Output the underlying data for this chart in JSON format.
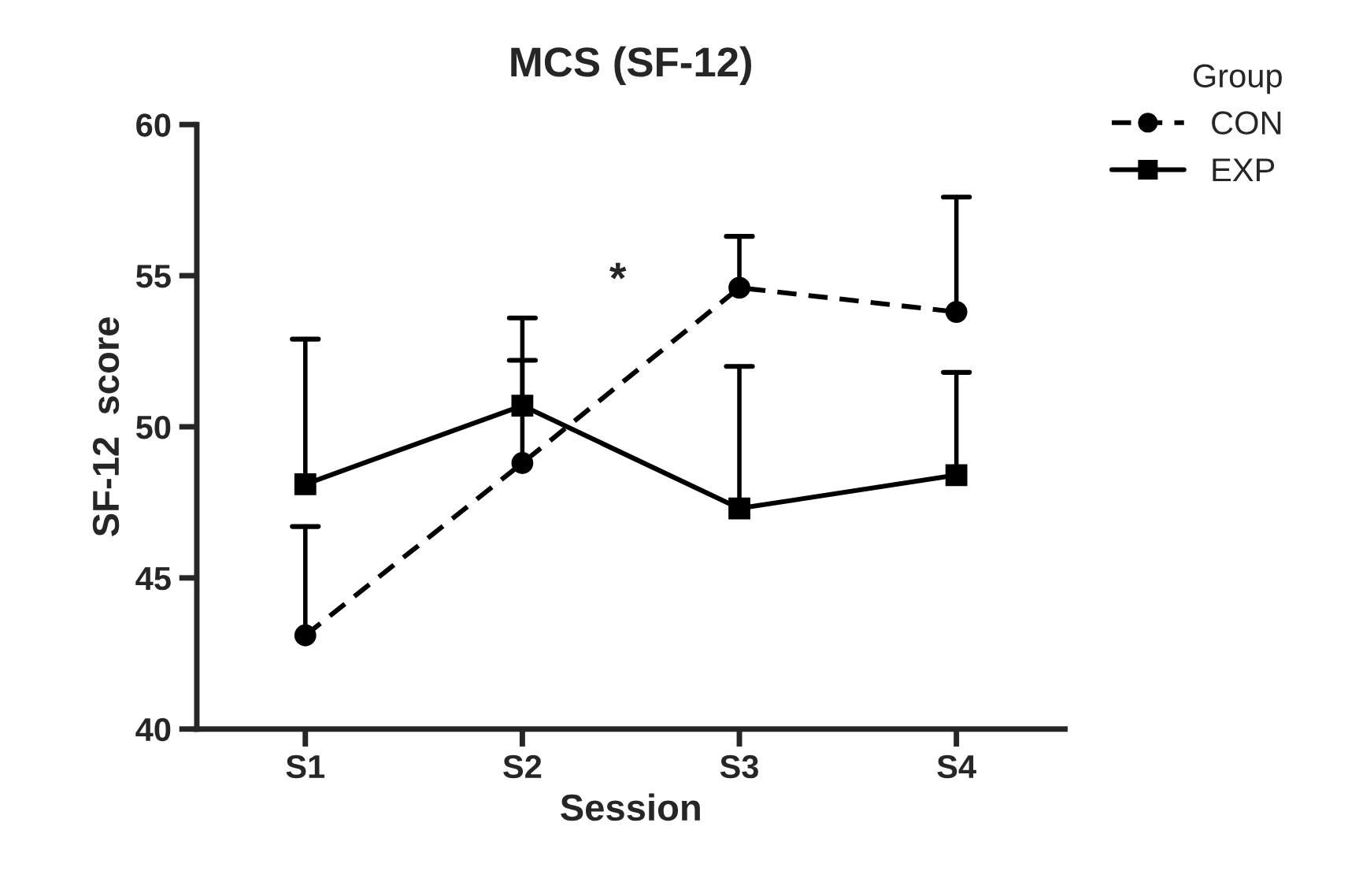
{
  "chart_data": {
    "type": "line",
    "title": "MCS (SF-12)",
    "xlabel": "Session",
    "ylabel": "SF-12  score",
    "legend_title": "Group",
    "categories": [
      "S1",
      "S2",
      "S3",
      "S4"
    ],
    "ylim": [
      40,
      60
    ],
    "yticks": [
      40,
      45,
      50,
      55,
      60
    ],
    "series": [
      {
        "name": "CON",
        "color": "#000000",
        "marker": "circle",
        "line_style": "dashed",
        "values": [
          43.1,
          48.8,
          54.6,
          53.8
        ],
        "errors": [
          [
            43.1,
            46.7
          ],
          [
            48.8,
            52.2
          ],
          [
            54.6,
            56.3
          ],
          [
            53.8,
            57.6
          ]
        ]
      },
      {
        "name": "EXP",
        "color": "#000000",
        "marker": "square",
        "line_style": "solid",
        "values": [
          48.1,
          50.7,
          47.3,
          48.4
        ],
        "errors": [
          [
            48.1,
            52.9
          ],
          [
            50.7,
            53.6
          ],
          [
            47.3,
            52.0
          ],
          [
            48.4,
            51.8
          ]
        ]
      }
    ],
    "annotations": [
      "*"
    ],
    "legend": "top right",
    "grid": false
  }
}
